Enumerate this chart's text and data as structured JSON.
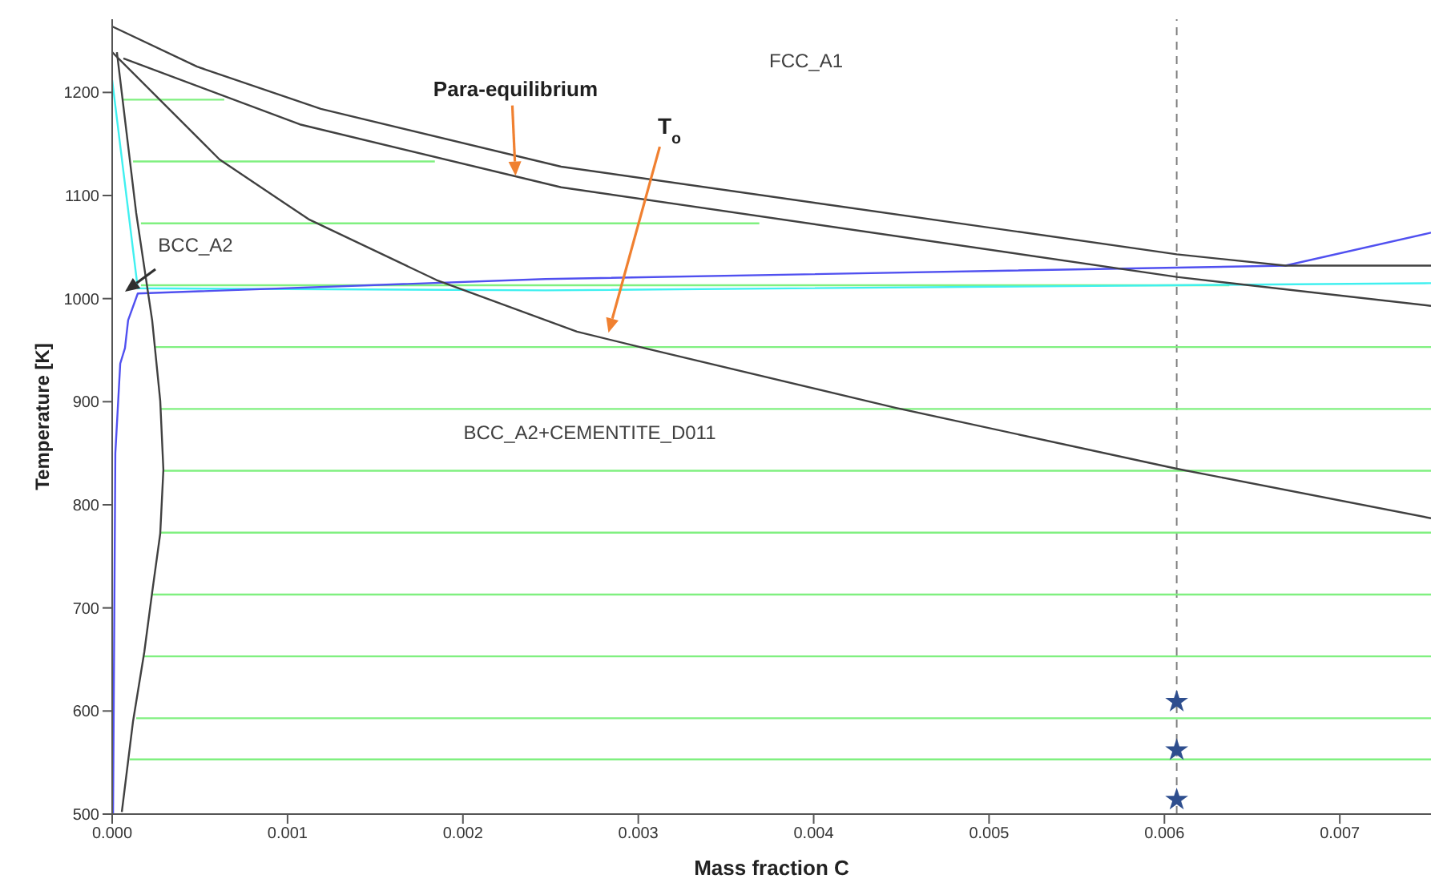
{
  "chart_data": {
    "type": "line",
    "xlabel": "Mass fraction C",
    "ylabel": "Temperature [K]",
    "xlim": [
      0,
      0.00752
    ],
    "ylim": [
      500,
      1271
    ],
    "xticks": [
      {
        "value": 0,
        "label": "0.000"
      },
      {
        "value": 0.001,
        "label": "0.001"
      },
      {
        "value": 0.002,
        "label": "0.002"
      },
      {
        "value": 0.003,
        "label": "0.003"
      },
      {
        "value": 0.004,
        "label": "0.004"
      },
      {
        "value": 0.005,
        "label": "0.005"
      },
      {
        "value": 0.006,
        "label": "0.006"
      },
      {
        "value": 0.007,
        "label": "0.007"
      }
    ],
    "yticks": [
      500,
      600,
      700,
      800,
      900,
      1000,
      1100,
      1200
    ],
    "grid": false,
    "annotations": [
      "FCC_A1",
      "BCC_A2+CEMENTITE_D011",
      {
        "text": "Para-equilibrium",
        "x": 0.0023,
        "y": 1119
      },
      {
        "text": "T$_{o}$",
        "x": 0.00283,
        "y": 967
      },
      "BCC_A2"
    ],
    "ref_lines": [
      {
        "axis": "x",
        "value": 0.00607,
        "color": "#808080",
        "line_style": "dashed"
      }
    ],
    "series": [
      {
        "color": "#80f080",
        "x": [
          6.4e-05,
          0.000639
        ],
        "values": [
          1193,
          1193
        ]
      },
      {
        "color": "#80f080",
        "x": [
          0.000119,
          0.00184
        ],
        "values": [
          1133,
          1133
        ]
      },
      {
        "color": "#80f080",
        "x": [
          0.000164,
          0.00369
        ],
        "values": [
          1073,
          1073
        ]
      },
      {
        "color": "#80f080",
        "x": [
          0.000164,
          0.00637
        ],
        "values": [
          1013,
          1013
        ]
      },
      {
        "color": "#80f080",
        "x": [
          0.000247,
          0.00752
        ],
        "values": [
          953,
          953
        ]
      },
      {
        "color": "#80f080",
        "x": [
          0.000274,
          0.00752
        ],
        "values": [
          893,
          893
        ]
      },
      {
        "color": "#80f080",
        "x": [
          0.000292,
          0.00752
        ],
        "values": [
          833,
          833
        ]
      },
      {
        "color": "#80f080",
        "x": [
          0.000274,
          0.00752
        ],
        "values": [
          773,
          773
        ]
      },
      {
        "color": "#80f080",
        "x": [
          0.000228,
          0.00752
        ],
        "values": [
          713,
          713
        ]
      },
      {
        "color": "#80f080",
        "x": [
          0.000183,
          0.00752
        ],
        "values": [
          653,
          653
        ]
      },
      {
        "color": "#80f080",
        "x": [
          0.000137,
          0.00752
        ],
        "values": [
          593,
          593
        ]
      },
      {
        "color": "#80f080",
        "x": [
          0.0001,
          0.00752
        ],
        "values": [
          553,
          553
        ]
      },
      {
        "color": "#40f0f0",
        "x": [
          0,
          0.000146,
          0.00247,
          0.00752
        ],
        "values": [
          1212,
          1010,
          1008,
          1015
        ]
      },
      {
        "color": "#5050f0",
        "x": [
          5e-06,
          1.8e-05,
          4.6e-05,
          7.3e-05,
          9.1e-05,
          0.000146,
          0.00247,
          0.00669,
          0.00752
        ],
        "values": [
          500,
          850,
          937,
          952,
          979,
          1005,
          1019,
          1032,
          1064
        ]
      },
      {
        "color": "#404040",
        "x": [
          0,
          0.000484,
          0.00119,
          0.00256,
          0.00607,
          0.00669,
          0.00752
        ],
        "values": [
          1264,
          1225,
          1184,
          1128,
          1043,
          1032,
          1032
        ]
      },
      {
        "color": "#404040",
        "x": [
          6.4e-05,
          0.00107,
          0.00256,
          0.00607,
          0.00752
        ],
        "values": [
          1233,
          1169,
          1108,
          1021,
          993
        ]
      },
      {
        "color": "#404040",
        "x": [
          0,
          0.000612,
          0.00112,
          0.00185,
          0.00265,
          0.00301,
          0.00447,
          0.00607,
          0.00752
        ],
        "values": [
          1239,
          1135,
          1077,
          1018,
          968,
          953,
          894,
          835,
          787
        ]
      },
      {
        "color": "#404040",
        "x": [
          2.7e-05,
          0.000137,
          0.000228,
          0.000274,
          0.000292,
          0.000274,
          0.000228,
          0.000183,
          0.000119,
          5.5e-05
        ],
        "values": [
          1239,
          1083,
          979,
          901,
          834,
          772,
          715,
          657,
          590,
          502
        ]
      },
      {
        "type": "scatter",
        "marker": "star",
        "color": "#2e4e8e",
        "x": [
          0.00607,
          0.00607,
          0.00607
        ],
        "values": [
          609,
          562,
          514
        ]
      }
    ]
  }
}
